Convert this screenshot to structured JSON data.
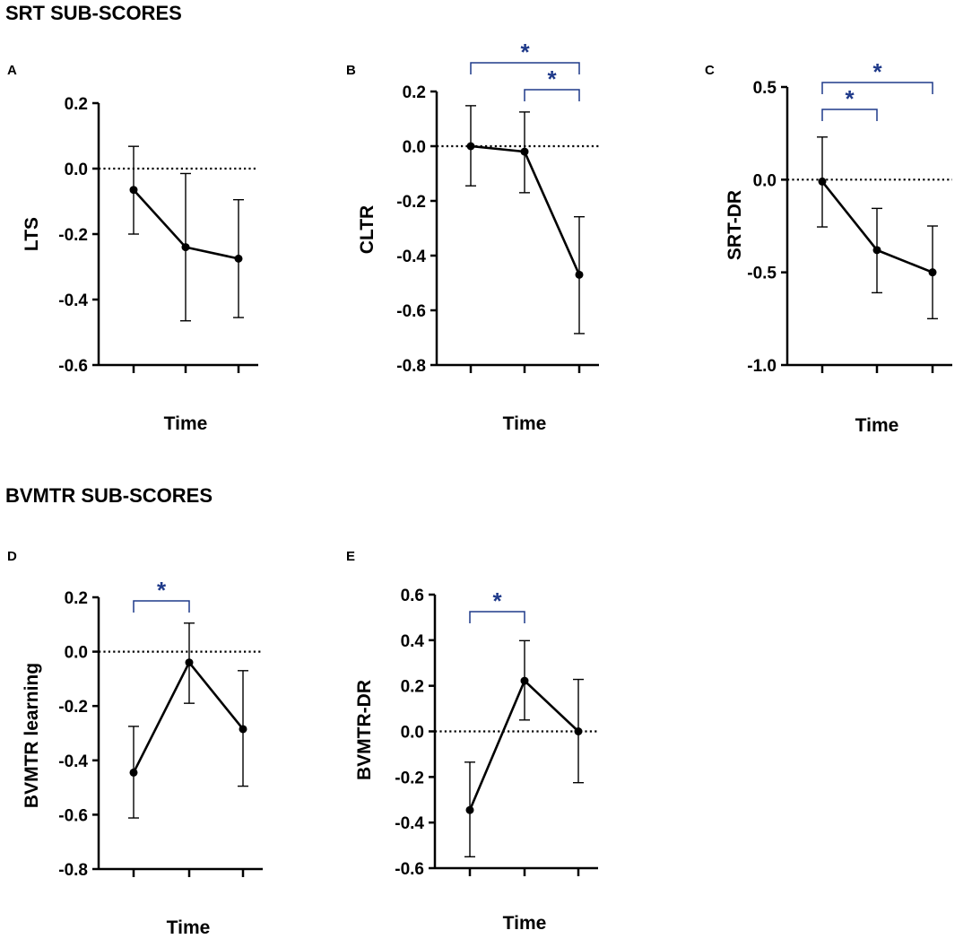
{
  "sections": {
    "srt_title": "SRT SUB-SCORES",
    "bvmtr_title": "BVMTR SUB-SCORES"
  },
  "colors": {
    "sig": "#1f3a8a",
    "axis": "#000000"
  },
  "chart_data": [
    {
      "id": "A",
      "type": "line",
      "panel_label": "A",
      "ylabel": "LTS",
      "xlabel": "Time",
      "ylim": [
        -0.6,
        0.2
      ],
      "yticks": [
        0.2,
        0.0,
        -0.2,
        -0.4,
        -0.6
      ],
      "ytick_labels": [
        "0.2",
        "0.0",
        "-0.2",
        "-0.4",
        "-0.6"
      ],
      "reference_line": 0,
      "points": [
        {
          "mean": -0.065,
          "lo": -0.2,
          "hi": 0.068
        },
        {
          "mean": -0.24,
          "lo": -0.465,
          "hi": -0.015
        },
        {
          "mean": -0.275,
          "lo": -0.455,
          "hi": -0.095
        }
      ],
      "significance": []
    },
    {
      "id": "B",
      "type": "line",
      "panel_label": "B",
      "ylabel": "CLTR",
      "xlabel": "Time",
      "ylim": [
        -0.8,
        0.2
      ],
      "yticks": [
        0.2,
        0.0,
        -0.2,
        -0.4,
        -0.6,
        -0.8
      ],
      "ytick_labels": [
        "0.2",
        "0.0",
        "-0.2",
        "-0.4",
        "-0.6",
        "-0.8"
      ],
      "reference_line": 0,
      "points": [
        {
          "mean": 0.0,
          "lo": -0.145,
          "hi": 0.148
        },
        {
          "mean": -0.02,
          "lo": -0.17,
          "hi": 0.125
        },
        {
          "mean": -0.47,
          "lo": -0.685,
          "hi": -0.258
        }
      ],
      "significance": [
        {
          "from": 0,
          "to": 2,
          "level": 0,
          "label": "*"
        },
        {
          "from": 1,
          "to": 2,
          "level": 1,
          "label": "*"
        }
      ]
    },
    {
      "id": "C",
      "type": "line",
      "panel_label": "C",
      "ylabel": "SRT-DR",
      "xlabel": "Time",
      "ylim": [
        -1.0,
        0.5
      ],
      "yticks": [
        0.5,
        0.0,
        -0.5,
        -1.0
      ],
      "ytick_labels": [
        "0.5",
        "0.0",
        "-0.5",
        "-1.0"
      ],
      "reference_line": 0,
      "points": [
        {
          "mean": -0.01,
          "lo": -0.255,
          "hi": 0.23
        },
        {
          "mean": -0.38,
          "lo": -0.61,
          "hi": -0.155
        },
        {
          "mean": -0.5,
          "lo": -0.75,
          "hi": -0.25
        }
      ],
      "significance": [
        {
          "from": 0,
          "to": 2,
          "level": 0,
          "label": "*"
        },
        {
          "from": 0,
          "to": 1,
          "level": 1,
          "label": "*"
        }
      ]
    },
    {
      "id": "D",
      "type": "line",
      "panel_label": "D",
      "ylabel": "BVMTR learning",
      "xlabel": "Time",
      "ylim": [
        -0.8,
        0.2
      ],
      "yticks": [
        0.2,
        0.0,
        -0.2,
        -0.4,
        -0.6,
        -0.8
      ],
      "ytick_labels": [
        "0.2",
        "0.0",
        "-0.2",
        "-0.4",
        "-0.6",
        "-0.8"
      ],
      "reference_line": 0,
      "points": [
        {
          "mean": -0.445,
          "lo": -0.612,
          "hi": -0.275
        },
        {
          "mean": -0.04,
          "lo": -0.19,
          "hi": 0.105
        },
        {
          "mean": -0.285,
          "lo": -0.495,
          "hi": -0.07
        }
      ],
      "significance": [
        {
          "from": 0,
          "to": 1,
          "level": 0,
          "label": "*"
        }
      ]
    },
    {
      "id": "E",
      "type": "line",
      "panel_label": "E",
      "ylabel": "BVMTR-DR",
      "xlabel": "Time",
      "ylim": [
        -0.6,
        0.6
      ],
      "yticks": [
        0.6,
        0.4,
        0.2,
        0.0,
        -0.2,
        -0.4,
        -0.6
      ],
      "ytick_labels": [
        "0.6",
        "0.4",
        "0.2",
        "0.0",
        "-0.2",
        "-0.4",
        "-0.6"
      ],
      "reference_line": 0,
      "points": [
        {
          "mean": -0.345,
          "lo": -0.55,
          "hi": -0.135
        },
        {
          "mean": 0.222,
          "lo": 0.05,
          "hi": 0.398
        },
        {
          "mean": 0.0,
          "lo": -0.225,
          "hi": 0.228
        }
      ],
      "significance": [
        {
          "from": 0,
          "to": 1,
          "level": 0,
          "label": "*"
        }
      ]
    }
  ]
}
